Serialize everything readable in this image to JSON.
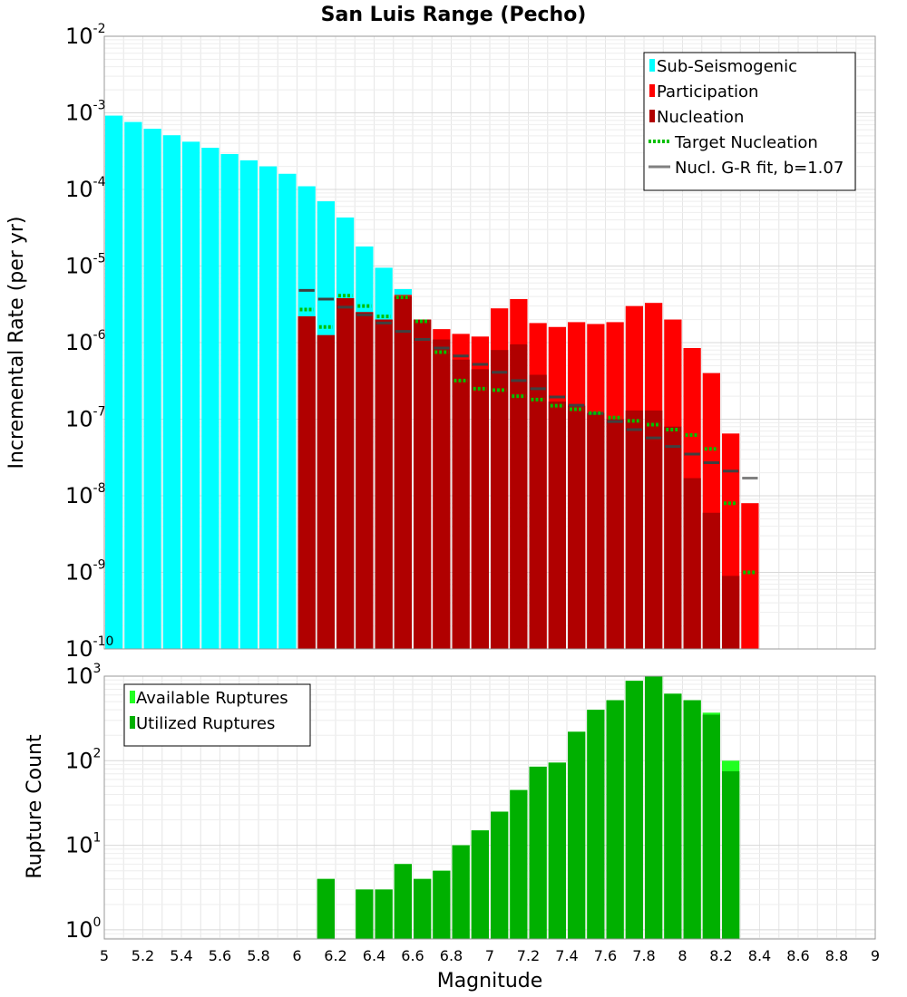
{
  "chart_data": [
    {
      "type": "bar",
      "title": "San Luis Range (Pecho)",
      "xlabel": "",
      "ylabel": "Incremental Rate (per yr)",
      "yscale": "log",
      "ylim": [
        1e-10,
        0.01
      ],
      "ytick_labels": [
        {
          "base": "10",
          "exp": "-10"
        },
        {
          "base": "10",
          "exp": "-9"
        },
        {
          "base": "10",
          "exp": "-8"
        },
        {
          "base": "10",
          "exp": "-7"
        },
        {
          "base": "10",
          "exp": "-6"
        },
        {
          "base": "10",
          "exp": "-5"
        },
        {
          "base": "10",
          "exp": "-4"
        },
        {
          "base": "10",
          "exp": "-3"
        },
        {
          "base": "10",
          "exp": "-2"
        }
      ],
      "xlim": [
        5,
        9
      ],
      "bin_width": 0.1,
      "grid": true,
      "legend_position": "top-right",
      "legend": [
        {
          "label": "Sub-Seismogenic",
          "symbol": "bar",
          "color": "#00ffff"
        },
        {
          "label": "Participation",
          "symbol": "bar",
          "color": "#ff0000"
        },
        {
          "label": "Nucleation",
          "symbol": "bar",
          "color": "#b00000"
        },
        {
          "label": "Target Nucleation",
          "symbol": "dotted",
          "color": "#00c000"
        },
        {
          "label": "Nucl. G-R fit, b=1.07",
          "symbol": "line",
          "color": "#808080"
        }
      ],
      "series": [
        {
          "name": "Sub-Seismogenic",
          "color": "#00ffff",
          "x": [
            5.05,
            5.15,
            5.25,
            5.35,
            5.45,
            5.55,
            5.65,
            5.75,
            5.85,
            5.95,
            6.05,
            6.15,
            6.25,
            6.35,
            6.45,
            6.55
          ],
          "values": [
            0.00092,
            0.00076,
            0.00062,
            0.00051,
            0.00042,
            0.00035,
            0.00029,
            0.00024,
            0.0002,
            0.00016,
            0.00011,
            7e-05,
            4.3e-05,
            1.8e-05,
            9.5e-06,
            5e-06
          ]
        },
        {
          "name": "Participation",
          "color": "#ff0000",
          "x": [
            6.05,
            6.15,
            6.25,
            6.35,
            6.45,
            6.55,
            6.65,
            6.75,
            6.85,
            6.95,
            7.05,
            7.15,
            7.25,
            7.35,
            7.45,
            7.55,
            7.65,
            7.75,
            7.85,
            7.95,
            8.05,
            8.15,
            8.25,
            8.35
          ],
          "values": [
            2.2e-06,
            1.25e-06,
            3.8e-06,
            2.5e-06,
            2e-06,
            4.2e-06,
            2e-06,
            1.5e-06,
            1.3e-06,
            1.2e-06,
            2.8e-06,
            3.7e-06,
            1.8e-06,
            1.6e-06,
            1.85e-06,
            1.75e-06,
            1.85e-06,
            3e-06,
            3.3e-06,
            2e-06,
            8.5e-07,
            4e-07,
            6.5e-08,
            8e-09
          ]
        },
        {
          "name": "Nucleation",
          "color": "#b00000",
          "x": [
            6.05,
            6.15,
            6.25,
            6.35,
            6.45,
            6.55,
            6.65,
            6.75,
            6.85,
            6.95,
            7.05,
            7.15,
            7.25,
            7.35,
            7.45,
            7.55,
            7.65,
            7.75,
            7.85,
            7.95,
            8.05,
            8.15,
            8.25
          ],
          "values": [
            2.2e-06,
            1.25e-06,
            3.8e-06,
            2.5e-06,
            2e-06,
            4e-06,
            2e-06,
            1.1e-06,
            6e-07,
            4.5e-07,
            8e-07,
            9.5e-07,
            3.8e-07,
            1.7e-07,
            1.5e-07,
            1.2e-07,
            1e-07,
            1.3e-07,
            1.3e-07,
            8e-08,
            1.7e-08,
            6e-09,
            9e-10
          ]
        },
        {
          "name": "Target Nucleation",
          "color": "#00c000",
          "x": [
            6.05,
            6.15,
            6.25,
            6.35,
            6.45,
            6.55,
            6.65,
            6.75,
            6.85,
            6.95,
            7.05,
            7.15,
            7.25,
            7.35,
            7.45,
            7.55,
            7.65,
            7.75,
            7.85,
            7.95,
            8.05,
            8.15,
            8.25,
            8.35
          ],
          "values": [
            2.7e-06,
            1.6e-06,
            4.1e-06,
            3e-06,
            2.2e-06,
            3.9e-06,
            1.9e-06,
            7.5e-07,
            3.2e-07,
            2.5e-07,
            2.4e-07,
            2e-07,
            1.8e-07,
            1.5e-07,
            1.35e-07,
            1.2e-07,
            1.05e-07,
            9.5e-08,
            8.5e-08,
            7.3e-08,
            6.2e-08,
            4.1e-08,
            8e-09,
            1e-09
          ]
        },
        {
          "name": "Nucl. G-R fit, b=1.07",
          "color": "#404040",
          "x": [
            6.05,
            6.15,
            6.25,
            6.35,
            6.45,
            6.55,
            6.65,
            6.75,
            6.85,
            6.95,
            7.05,
            7.15,
            7.25,
            7.35,
            7.45,
            7.55,
            7.65,
            7.75,
            7.85,
            7.95,
            8.05,
            8.15,
            8.25,
            8.35
          ],
          "values": [
            4.8e-06,
            3.7e-06,
            2.9e-06,
            2.3e-06,
            1.8e-06,
            1.4e-06,
            1.1e-06,
            8.5e-07,
            6.7e-07,
            5.2e-07,
            4.1e-07,
            3.2e-07,
            2.5e-07,
            1.95e-07,
            1.52e-07,
            1.19e-07,
            9.3e-08,
            7.3e-08,
            5.7e-08,
            4.4e-08,
            3.5e-08,
            2.7e-08,
            2.1e-08,
            1.7e-08
          ]
        }
      ]
    },
    {
      "type": "bar",
      "xlabel": "Magnitude",
      "ylabel": "Rupture Count",
      "yscale": "log",
      "ylim": [
        0.78,
        1000
      ],
      "ytick_labels": [
        {
          "base": "10",
          "exp": "0"
        },
        {
          "base": "10",
          "exp": "1"
        },
        {
          "base": "10",
          "exp": "2"
        },
        {
          "base": "10",
          "exp": "3"
        }
      ],
      "xlim": [
        5,
        9
      ],
      "xtick_labels": [
        "5",
        "5.2",
        "5.4",
        "5.6",
        "5.8",
        "6",
        "6.2",
        "6.4",
        "6.6",
        "6.8",
        "7",
        "7.2",
        "7.4",
        "7.6",
        "7.8",
        "8",
        "8.2",
        "8.4",
        "8.6",
        "8.8",
        "9"
      ],
      "bin_width": 0.1,
      "grid": true,
      "legend_position": "top-left",
      "legend": [
        {
          "label": "Available Ruptures",
          "symbol": "bar",
          "color": "#22ff22"
        },
        {
          "label": "Utilized Ruptures",
          "symbol": "bar",
          "color": "#00b000"
        }
      ],
      "series": [
        {
          "name": "Available Ruptures",
          "color": "#22ff22",
          "x": [
            6.15,
            6.35,
            6.45,
            6.55,
            6.65,
            6.75,
            6.85,
            6.95,
            7.05,
            7.15,
            7.25,
            7.35,
            7.45,
            7.55,
            7.65,
            7.75,
            7.85,
            7.95,
            8.05,
            8.15,
            8.25
          ],
          "values": [
            4,
            3,
            3,
            6,
            4,
            5,
            10,
            15,
            25,
            45,
            85,
            95,
            220,
            400,
            520,
            880,
            1000,
            620,
            520,
            370,
            100
          ]
        },
        {
          "name": "Utilized Ruptures",
          "color": "#00b000",
          "x": [
            6.15,
            6.35,
            6.45,
            6.55,
            6.65,
            6.75,
            6.85,
            6.95,
            7.05,
            7.15,
            7.25,
            7.35,
            7.45,
            7.55,
            7.65,
            7.75,
            7.85,
            7.95,
            8.05,
            8.15,
            8.25
          ],
          "values": [
            4,
            3,
            3,
            6,
            4,
            5,
            10,
            15,
            25,
            45,
            85,
            95,
            220,
            400,
            520,
            880,
            1000,
            620,
            520,
            350,
            75
          ]
        }
      ]
    }
  ]
}
